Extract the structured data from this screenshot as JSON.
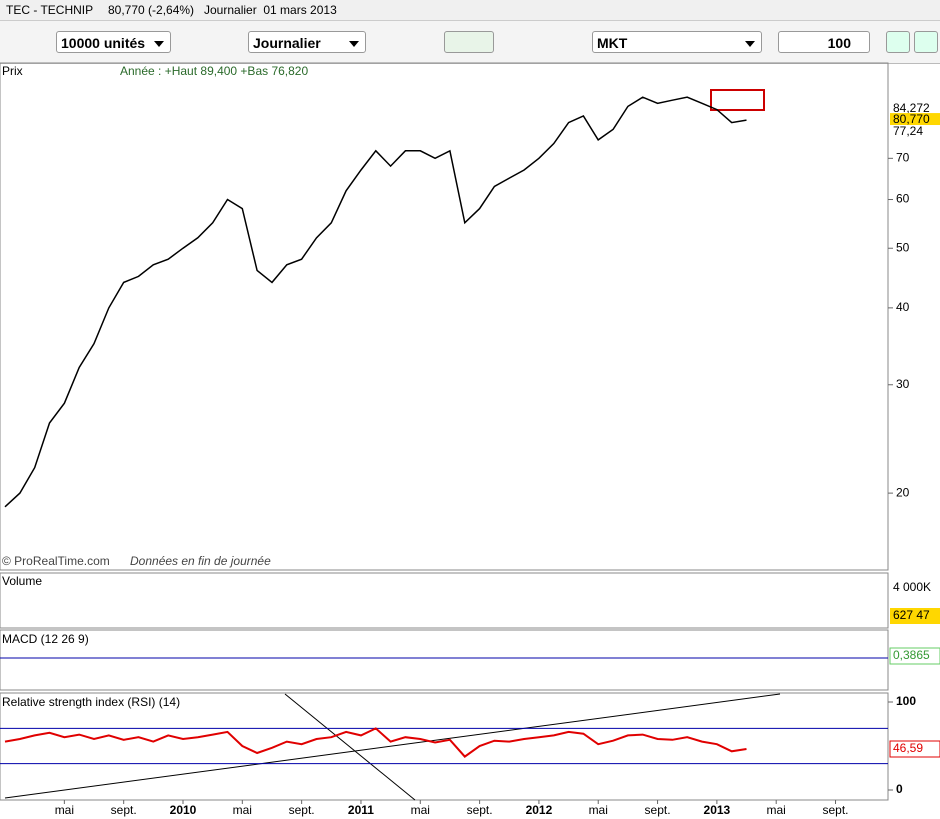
{
  "title_bar": {
    "symbol": "TEC - TECHNIP",
    "quote": "80,770 (-2,64%)",
    "period": "Journalier  01 mars 2013"
  },
  "toolbar": {
    "quantity": "10000 unités",
    "timeframe": "Journalier",
    "order_type": "MKT",
    "amount": "100"
  },
  "chart_data": {
    "type": "line",
    "panel_label": "Prix",
    "annotation": "Année : +Haut 89,400 +Bas 76,820",
    "copyright": "© ProRealTime.com",
    "note": "Données en fin de journée",
    "color": "#000000",
    "log_scale": true,
    "x": [
      "2009-01",
      "2009-02",
      "2009-03",
      "2009-04",
      "2009-05",
      "2009-06",
      "2009-07",
      "2009-08",
      "2009-09",
      "2009-10",
      "2009-11",
      "2009-12",
      "2010-01",
      "2010-02",
      "2010-03",
      "2010-04",
      "2010-05",
      "2010-06",
      "2010-07",
      "2010-08",
      "2010-09",
      "2010-10",
      "2010-11",
      "2010-12",
      "2011-01",
      "2011-02",
      "2011-03",
      "2011-04",
      "2011-05",
      "2011-06",
      "2011-07",
      "2011-08",
      "2011-09",
      "2011-10",
      "2011-11",
      "2011-12",
      "2012-01",
      "2012-02",
      "2012-03",
      "2012-04",
      "2012-05",
      "2012-06",
      "2012-07",
      "2012-08",
      "2012-09",
      "2012-10",
      "2012-11",
      "2012-12",
      "2013-01",
      "2013-02",
      "2013-03"
    ],
    "values": [
      19,
      20,
      22,
      26,
      28,
      32,
      35,
      40,
      44,
      45,
      47,
      48,
      50,
      52,
      55,
      60,
      58,
      46,
      44,
      47,
      48,
      52,
      55,
      62,
      67,
      72,
      68,
      72,
      72,
      70,
      72,
      55,
      58,
      63,
      65,
      67,
      70,
      74,
      80,
      82,
      75,
      78,
      85,
      88,
      86,
      87,
      88,
      86,
      84,
      80,
      80.77
    ],
    "ylim": [
      15,
      100
    ],
    "yticks": [
      20,
      30,
      40,
      50,
      60,
      70
    ],
    "price_labels": [
      {
        "value": 84.272,
        "label": "84,272"
      },
      {
        "value": 80.77,
        "label": "80,770"
      },
      {
        "value": 77.24,
        "label": "77,24"
      }
    ],
    "x_labels": [
      {
        "value": "2009-05",
        "label": "mai"
      },
      {
        "value": "2009-09",
        "label": "sept."
      },
      {
        "value": "2010-01",
        "label": "2010"
      },
      {
        "value": "2010-05",
        "label": "mai"
      },
      {
        "value": "2010-09",
        "label": "sept."
      },
      {
        "value": "2011-01",
        "label": "2011"
      },
      {
        "value": "2011-05",
        "label": "mai"
      },
      {
        "value": "2011-09",
        "label": "sept."
      },
      {
        "value": "2012-01",
        "label": "2012"
      },
      {
        "value": "2012-05",
        "label": "mai"
      },
      {
        "value": "2012-09",
        "label": "sept."
      },
      {
        "value": "2013-01",
        "label": "2013"
      },
      {
        "value": "2013-05",
        "label": "mai"
      },
      {
        "value": "2013-09",
        "label": "sept."
      }
    ]
  },
  "volume": {
    "label": "Volume",
    "top_tick": "4 000K",
    "last": "627 47"
  },
  "macd": {
    "label": "MACD (12 26 9)",
    "last": "0,3865"
  },
  "rsi": {
    "label": "Relative strength index (RSI) (14)",
    "color": "#e00000",
    "ylim": [
      0,
      100
    ],
    "yticks": [
      0,
      100
    ],
    "levels": [
      70,
      30
    ],
    "values": [
      55,
      58,
      62,
      65,
      60,
      63,
      58,
      62,
      57,
      60,
      55,
      62,
      58,
      60,
      63,
      66,
      50,
      42,
      48,
      55,
      52,
      58,
      60,
      66,
      62,
      70,
      55,
      60,
      58,
      54,
      57,
      38,
      50,
      56,
      55,
      58,
      60,
      62,
      66,
      64,
      52,
      56,
      62,
      63,
      58,
      57,
      60,
      55,
      52,
      44,
      46.59
    ],
    "last": {
      "value": 46.59,
      "label": "46,59"
    }
  }
}
